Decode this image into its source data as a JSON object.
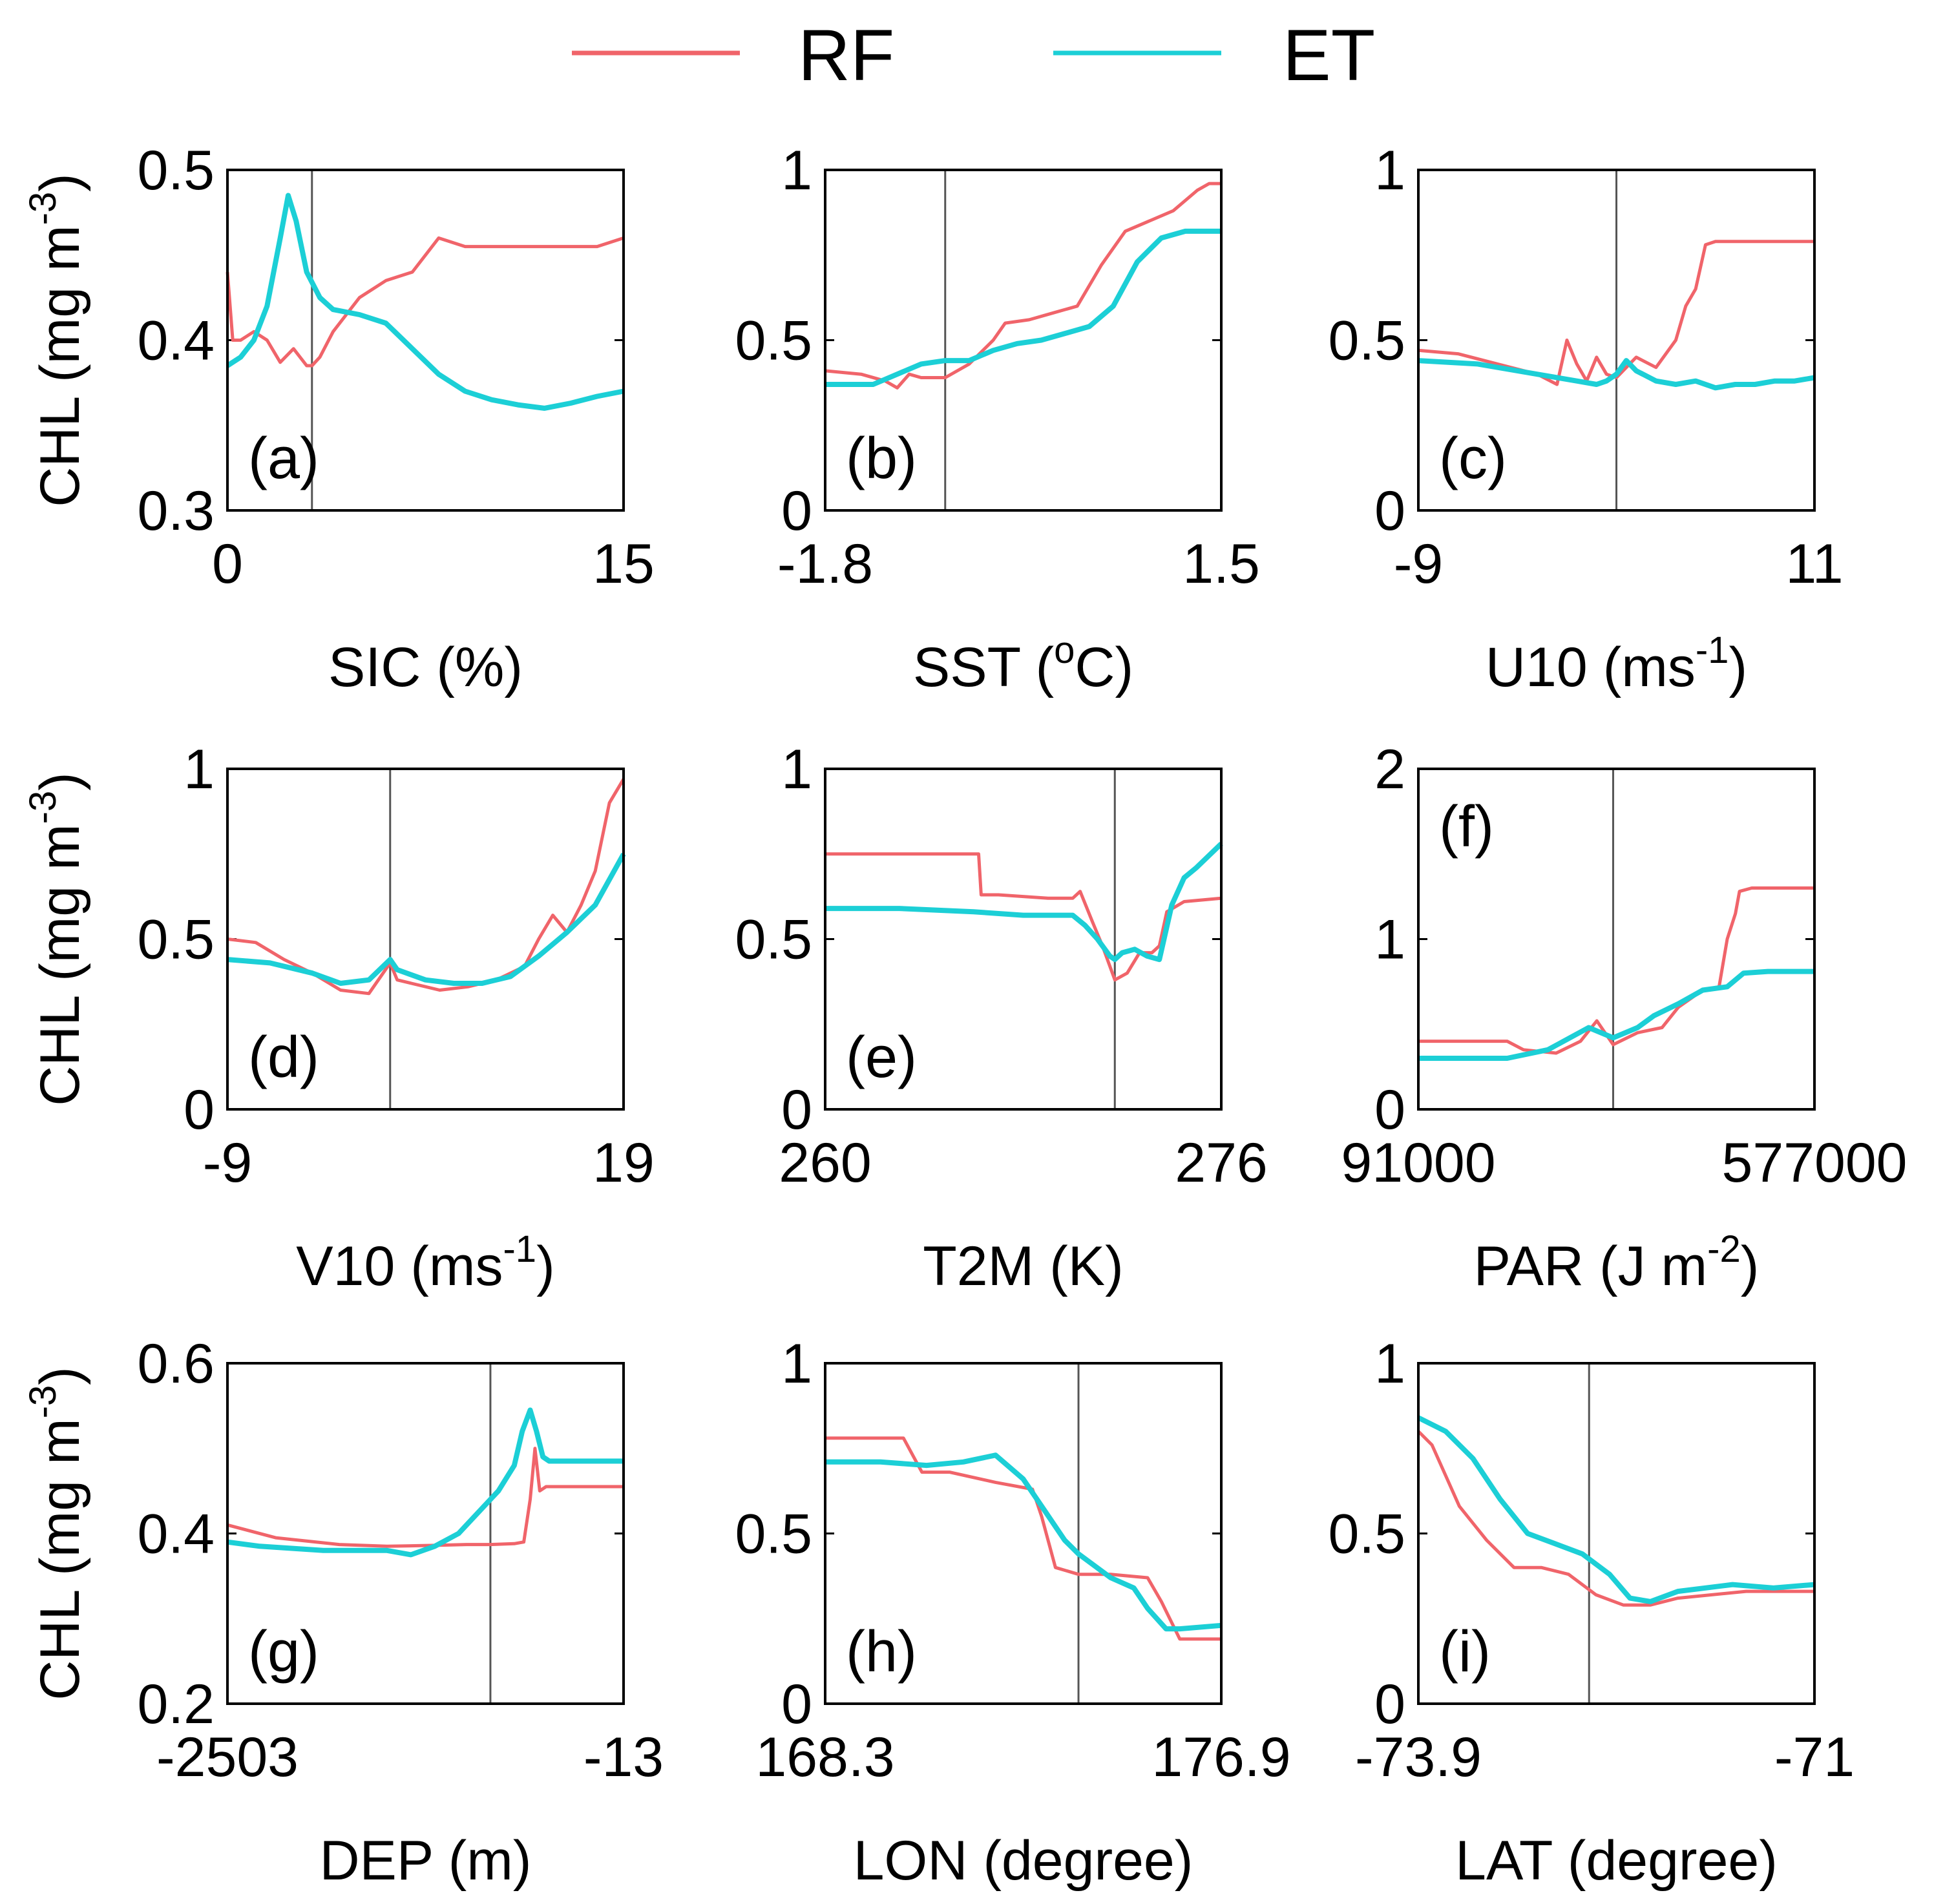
{
  "legend": {
    "position": "top-center",
    "entries": [
      {
        "name": "RF",
        "color": "#f0646a"
      },
      {
        "name": "ET",
        "color": "#1ccfd6"
      }
    ]
  },
  "chart_data": [
    {
      "type": "line",
      "panel": "(a)",
      "title": "",
      "xlabel": "SIC (%)",
      "xlabel_main": "SIC (%)",
      "xlabel_sup": "",
      "xlabel_tail": "",
      "ylabel": "CHL (mg m-3)",
      "ylabel_main": "CHL (mg m",
      "ylabel_sup": "-3",
      "ylabel_tail": ")",
      "xlim": [
        0,
        15
      ],
      "ylim": [
        0.3,
        0.5
      ],
      "x_ticks": [
        "0",
        "15"
      ],
      "y_ticks": [
        "0.3",
        "0.4",
        "0.5"
      ],
      "vline": 3.2,
      "label_pos": "bottom-left",
      "series": [
        {
          "name": "RF",
          "x": [
            0,
            0.2,
            0.5,
            1.0,
            1.5,
            2.0,
            2.5,
            3.0,
            3.2,
            3.5,
            4.0,
            5.0,
            6.0,
            7.0,
            8.0,
            9.0,
            10.0,
            11.0,
            12.0,
            13.0,
            14.0,
            15.0
          ],
          "y": [
            0.44,
            0.4,
            0.4,
            0.405,
            0.4,
            0.387,
            0.395,
            0.385,
            0.385,
            0.39,
            0.405,
            0.425,
            0.435,
            0.44,
            0.46,
            0.455,
            0.455,
            0.455,
            0.455,
            0.455,
            0.455,
            0.46
          ]
        },
        {
          "name": "ET",
          "x": [
            0,
            0.5,
            1.0,
            1.5,
            2.0,
            2.3,
            2.6,
            3.0,
            3.5,
            4.0,
            5.0,
            6.0,
            7.0,
            8.0,
            9.0,
            10.0,
            11.0,
            12.0,
            13.0,
            14.0,
            15.0
          ],
          "y": [
            0.385,
            0.39,
            0.4,
            0.42,
            0.46,
            0.485,
            0.47,
            0.44,
            0.425,
            0.418,
            0.415,
            0.41,
            0.395,
            0.38,
            0.37,
            0.365,
            0.362,
            0.36,
            0.363,
            0.367,
            0.37
          ]
        }
      ]
    },
    {
      "type": "line",
      "panel": "(b)",
      "title": "",
      "xlabel": "SST (oC)",
      "xlabel_main": "SST (",
      "xlabel_sup": "o",
      "xlabel_tail": "C)",
      "ylabel": "",
      "ylabel_main": "",
      "ylabel_sup": "",
      "ylabel_tail": "",
      "xlim": [
        -1.8,
        1.5
      ],
      "ylim": [
        0,
        1
      ],
      "x_ticks": [
        "-1.8",
        "1.5"
      ],
      "y_ticks": [
        "0",
        "0.5",
        "1"
      ],
      "vline": -0.8,
      "label_pos": "bottom-left",
      "series": [
        {
          "name": "RF",
          "x": [
            -1.8,
            -1.5,
            -1.3,
            -1.2,
            -1.1,
            -1.0,
            -0.8,
            -0.6,
            -0.4,
            -0.3,
            -0.1,
            0.1,
            0.3,
            0.5,
            0.7,
            0.9,
            1.1,
            1.3,
            1.4,
            1.5
          ],
          "y": [
            0.41,
            0.4,
            0.38,
            0.36,
            0.4,
            0.39,
            0.39,
            0.43,
            0.5,
            0.55,
            0.56,
            0.58,
            0.6,
            0.72,
            0.82,
            0.85,
            0.88,
            0.94,
            0.96,
            0.96
          ]
        },
        {
          "name": "ET",
          "x": [
            -1.8,
            -1.4,
            -1.2,
            -1.0,
            -0.8,
            -0.6,
            -0.4,
            -0.2,
            0.0,
            0.2,
            0.4,
            0.6,
            0.8,
            1.0,
            1.2,
            1.5
          ],
          "y": [
            0.37,
            0.37,
            0.4,
            0.43,
            0.44,
            0.44,
            0.47,
            0.49,
            0.5,
            0.52,
            0.54,
            0.6,
            0.73,
            0.8,
            0.82,
            0.82
          ]
        }
      ]
    },
    {
      "type": "line",
      "panel": "(c)",
      "title": "",
      "xlabel": "U10 (ms-1)",
      "xlabel_main": "U10 (ms",
      "xlabel_sup": "-1",
      "xlabel_tail": ")",
      "ylabel": "",
      "ylabel_main": "",
      "ylabel_sup": "",
      "ylabel_tail": "",
      "xlim": [
        -9,
        11
      ],
      "ylim": [
        0,
        1
      ],
      "x_ticks": [
        "-9",
        "11"
      ],
      "y_ticks": [
        "0",
        "0.5",
        "1"
      ],
      "vline": 1,
      "label_pos": "bottom-left",
      "series": [
        {
          "name": "RF",
          "x": [
            -9,
            -7,
            -5,
            -3,
            -2,
            -1.5,
            -1,
            -0.5,
            0,
            0.5,
            1,
            2,
            3,
            4,
            4.5,
            5,
            5.5,
            6,
            11
          ],
          "y": [
            0.47,
            0.46,
            0.43,
            0.4,
            0.37,
            0.5,
            0.43,
            0.38,
            0.45,
            0.4,
            0.39,
            0.45,
            0.42,
            0.5,
            0.6,
            0.65,
            0.78,
            0.79,
            0.79
          ]
        },
        {
          "name": "ET",
          "x": [
            -9,
            -6,
            -3,
            -1,
            0,
            0.5,
            1,
            1.5,
            2,
            3,
            4,
            5,
            6,
            7,
            8,
            9,
            10,
            11
          ],
          "y": [
            0.44,
            0.43,
            0.4,
            0.38,
            0.37,
            0.38,
            0.4,
            0.44,
            0.41,
            0.38,
            0.37,
            0.38,
            0.36,
            0.37,
            0.37,
            0.38,
            0.38,
            0.39
          ]
        }
      ]
    },
    {
      "type": "line",
      "panel": "(d)",
      "title": "",
      "xlabel": "V10 (ms-1)",
      "xlabel_main": "V10 (ms",
      "xlabel_sup": "-1",
      "xlabel_tail": ")",
      "ylabel": "CHL (mg m-3)",
      "ylabel_main": "CHL (mg m",
      "ylabel_sup": "-3",
      "ylabel_tail": ")",
      "xlim": [
        -9,
        19
      ],
      "ylim": [
        0,
        1
      ],
      "x_ticks": [
        "-9",
        "19"
      ],
      "y_ticks": [
        "0",
        "0.5",
        "1"
      ],
      "vline": 2.5,
      "label_pos": "bottom-left",
      "series": [
        {
          "name": "RF",
          "x": [
            -9,
            -7,
            -5,
            -3,
            -1,
            1,
            2.5,
            3,
            4,
            6,
            8,
            10,
            12,
            13,
            14,
            15,
            16,
            17,
            18,
            19
          ],
          "y": [
            0.5,
            0.49,
            0.44,
            0.4,
            0.35,
            0.34,
            0.43,
            0.38,
            0.37,
            0.35,
            0.36,
            0.38,
            0.42,
            0.5,
            0.57,
            0.52,
            0.6,
            0.7,
            0.9,
            0.97
          ]
        },
        {
          "name": "ET",
          "x": [
            -9,
            -6,
            -3,
            -1,
            1,
            2.5,
            3,
            5,
            7,
            9,
            11,
            13,
            15,
            17,
            19
          ],
          "y": [
            0.44,
            0.43,
            0.4,
            0.37,
            0.38,
            0.44,
            0.41,
            0.38,
            0.37,
            0.37,
            0.39,
            0.45,
            0.52,
            0.6,
            0.75
          ]
        }
      ]
    },
    {
      "type": "line",
      "panel": "(e)",
      "title": "",
      "xlabel": "T2M (K)",
      "xlabel_main": "T2M (K)",
      "xlabel_sup": "",
      "xlabel_tail": "",
      "ylabel": "",
      "ylabel_main": "",
      "ylabel_sup": "",
      "ylabel_tail": "",
      "xlim": [
        260,
        276
      ],
      "ylim": [
        0,
        1
      ],
      "x_ticks": [
        "260",
        "276"
      ],
      "y_ticks": [
        "0",
        "0.5",
        "1"
      ],
      "vline": 271.7,
      "label_pos": "bottom-left",
      "series": [
        {
          "name": "RF",
          "x": [
            260,
            266.2,
            266.3,
            267,
            269,
            270,
            270.3,
            270.8,
            271.2,
            271.7,
            272.2,
            272.7,
            273.2,
            273.5,
            273.8,
            274.5,
            276
          ],
          "y": [
            0.75,
            0.75,
            0.63,
            0.63,
            0.62,
            0.62,
            0.64,
            0.55,
            0.48,
            0.38,
            0.4,
            0.46,
            0.46,
            0.48,
            0.58,
            0.61,
            0.62
          ]
        },
        {
          "name": "ET",
          "x": [
            260,
            263,
            266,
            268,
            270,
            270.5,
            271,
            271.5,
            271.7,
            272,
            272.5,
            273,
            273.5,
            274,
            274.5,
            275,
            276
          ],
          "y": [
            0.59,
            0.59,
            0.58,
            0.57,
            0.57,
            0.54,
            0.5,
            0.45,
            0.44,
            0.46,
            0.47,
            0.45,
            0.44,
            0.6,
            0.68,
            0.71,
            0.78
          ]
        }
      ]
    },
    {
      "type": "line",
      "panel": "(f)",
      "title": "",
      "xlabel": "PAR (J m-2)",
      "xlabel_main": "PAR (J m",
      "xlabel_sup": "-2",
      "xlabel_tail": ")",
      "ylabel": "",
      "ylabel_main": "",
      "ylabel_sup": "",
      "ylabel_tail": "",
      "xlim": [
        91000,
        577000
      ],
      "ylim": [
        0,
        2
      ],
      "x_ticks": [
        "91000",
        "577000"
      ],
      "y_ticks": [
        "0",
        "1",
        "2"
      ],
      "vline": 330000,
      "label_pos": "top-left",
      "series": [
        {
          "name": "RF",
          "x": [
            91000,
            200000,
            220000,
            260000,
            290000,
            310000,
            330000,
            360000,
            390000,
            410000,
            440000,
            460000,
            470000,
            480000,
            485000,
            500000,
            577000
          ],
          "y": [
            0.4,
            0.4,
            0.35,
            0.33,
            0.4,
            0.52,
            0.38,
            0.45,
            0.48,
            0.6,
            0.7,
            0.72,
            1.0,
            1.15,
            1.28,
            1.3,
            1.3
          ]
        },
        {
          "name": "ET",
          "x": [
            91000,
            200000,
            250000,
            300000,
            330000,
            360000,
            380000,
            410000,
            440000,
            470000,
            490000,
            520000,
            577000
          ],
          "y": [
            0.3,
            0.3,
            0.35,
            0.48,
            0.42,
            0.48,
            0.55,
            0.62,
            0.7,
            0.72,
            0.8,
            0.81,
            0.81
          ]
        }
      ]
    },
    {
      "type": "line",
      "panel": "(g)",
      "title": "",
      "xlabel": "DEP (m)",
      "xlabel_main": "DEP (m)",
      "xlabel_sup": "",
      "xlabel_tail": "",
      "ylabel": "CHL (mg m-3)",
      "ylabel_main": "CHL (mg m",
      "ylabel_sup": "-3",
      "ylabel_tail": ")",
      "xlim": [
        -2503,
        -13
      ],
      "ylim": [
        0.2,
        0.6
      ],
      "x_ticks": [
        "-2503",
        "-13"
      ],
      "y_ticks": [
        "0.2",
        "0.4",
        "0.6"
      ],
      "vline": -850,
      "label_pos": "bottom-left",
      "series": [
        {
          "name": "RF",
          "x": [
            -2503,
            -2200,
            -1800,
            -1500,
            -1200,
            -1000,
            -850,
            -700,
            -640,
            -600,
            -570,
            -540,
            -500,
            -400,
            -13
          ],
          "y": [
            0.41,
            0.395,
            0.387,
            0.385,
            0.386,
            0.387,
            0.387,
            0.388,
            0.39,
            0.44,
            0.5,
            0.45,
            0.455,
            0.455,
            0.455
          ]
        },
        {
          "name": "ET",
          "x": [
            -2503,
            -2300,
            -1900,
            -1500,
            -1350,
            -1200,
            -1050,
            -900,
            -800,
            -700,
            -650,
            -600,
            -560,
            -520,
            -480,
            -400,
            -13
          ],
          "y": [
            0.39,
            0.385,
            0.38,
            0.38,
            0.375,
            0.385,
            0.4,
            0.43,
            0.45,
            0.48,
            0.52,
            0.545,
            0.52,
            0.49,
            0.485,
            0.485,
            0.485
          ]
        }
      ]
    },
    {
      "type": "line",
      "panel": "(h)",
      "title": "",
      "xlabel": "LON (degree)",
      "xlabel_main": "LON (degree)",
      "xlabel_sup": "",
      "xlabel_tail": "",
      "ylabel": "",
      "ylabel_main": "",
      "ylabel_sup": "",
      "ylabel_tail": "",
      "xlim": [
        168.3,
        176.9
      ],
      "ylim": [
        0,
        1
      ],
      "x_ticks": [
        "168.3",
        "176.9"
      ],
      "y_ticks": [
        "0",
        "0.5",
        "1"
      ],
      "vline": 173.8,
      "label_pos": "bottom-left",
      "series": [
        {
          "name": "RF",
          "x": [
            168.3,
            170.0,
            170.4,
            171.0,
            172.0,
            172.8,
            173.0,
            173.3,
            173.8,
            174.5,
            175.3,
            175.6,
            176.0,
            176.9
          ],
          "y": [
            0.78,
            0.78,
            0.68,
            0.68,
            0.65,
            0.63,
            0.55,
            0.4,
            0.38,
            0.38,
            0.37,
            0.3,
            0.19,
            0.19
          ]
        },
        {
          "name": "ET",
          "x": [
            168.3,
            169.5,
            170.5,
            171.3,
            172.0,
            172.6,
            173.0,
            173.5,
            173.8,
            174.5,
            175.0,
            175.3,
            175.7,
            176.0,
            176.9
          ],
          "y": [
            0.71,
            0.71,
            0.7,
            0.71,
            0.73,
            0.66,
            0.58,
            0.48,
            0.44,
            0.37,
            0.34,
            0.28,
            0.22,
            0.22,
            0.23
          ]
        }
      ]
    },
    {
      "type": "line",
      "panel": "(i)",
      "title": "",
      "xlabel": "LAT (degree)",
      "xlabel_main": "LAT (degree)",
      "xlabel_sup": "",
      "xlabel_tail": "",
      "ylabel": "",
      "ylabel_main": "",
      "ylabel_sup": "",
      "ylabel_tail": "",
      "xlim": [
        -73.9,
        -71
      ],
      "ylim": [
        0,
        1
      ],
      "x_ticks": [
        "-73.9",
        "-71"
      ],
      "y_ticks": [
        "0",
        "0.5",
        "1"
      ],
      "vline": -72.65,
      "label_pos": "bottom-left",
      "series": [
        {
          "name": "RF",
          "x": [
            -73.9,
            -73.8,
            -73.6,
            -73.4,
            -73.2,
            -73.0,
            -72.8,
            -72.6,
            -72.4,
            -72.2,
            -72.0,
            -71.5,
            -71.0
          ],
          "y": [
            0.8,
            0.76,
            0.58,
            0.48,
            0.4,
            0.4,
            0.38,
            0.32,
            0.29,
            0.29,
            0.31,
            0.33,
            0.33
          ]
        },
        {
          "name": "ET",
          "x": [
            -73.9,
            -73.7,
            -73.5,
            -73.3,
            -73.1,
            -72.9,
            -72.7,
            -72.5,
            -72.35,
            -72.2,
            -72.0,
            -71.6,
            -71.3,
            -71.0
          ],
          "y": [
            0.84,
            0.8,
            0.72,
            0.6,
            0.5,
            0.47,
            0.44,
            0.38,
            0.31,
            0.3,
            0.33,
            0.35,
            0.34,
            0.35
          ]
        }
      ]
    }
  ]
}
